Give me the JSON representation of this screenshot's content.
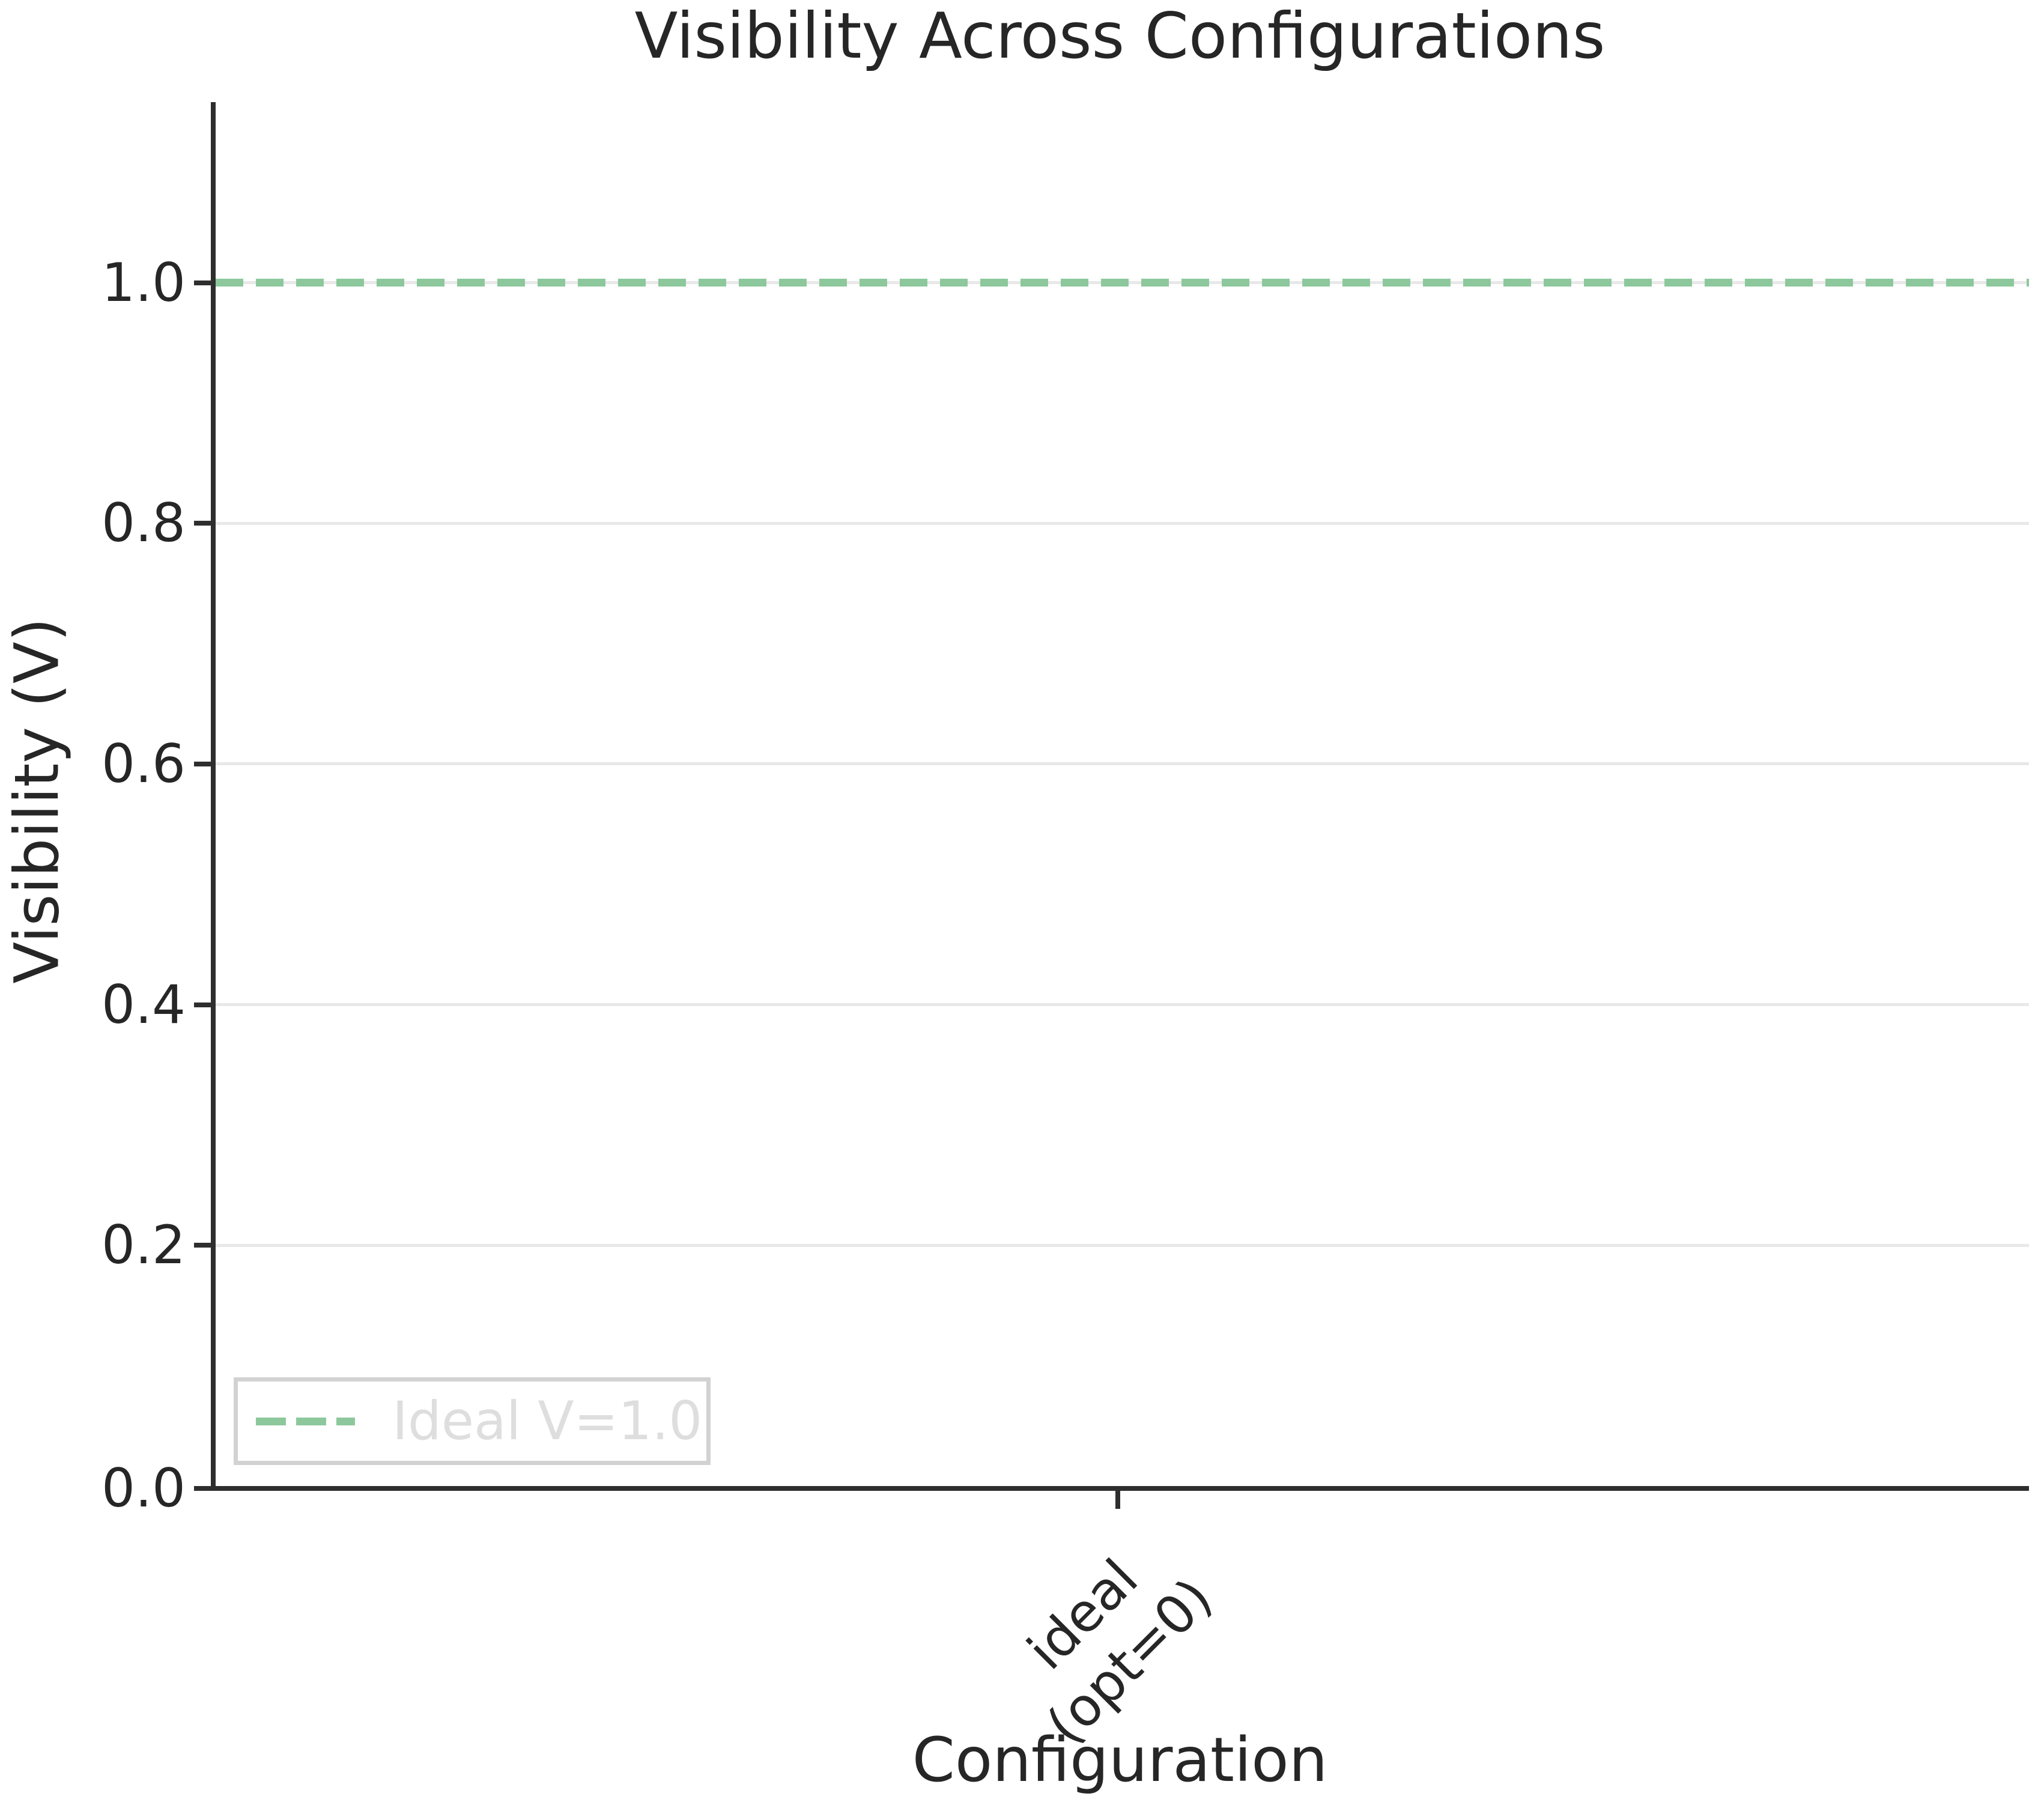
{
  "title": "Visibility Across Configurations",
  "axes": {
    "xlabel": "Configuration",
    "ylabel": "Visibility (V)"
  },
  "legend": {
    "entries": [
      {
        "label": "Ideal V=1.0",
        "color": "#8cc89c",
        "linestyle": "dashed"
      }
    ],
    "position": "lower left"
  },
  "colors": {
    "ideal_line": "#8cc89c",
    "grid": "#e8e8e8",
    "axis": "#2e2e2e",
    "text": "#262626",
    "legend_text": "#dedede",
    "legend_border": "#d2d2d2",
    "background": "#ffffff"
  },
  "chart_data": {
    "type": "bar",
    "title": "Visibility Across Configurations",
    "xlabel": "Configuration",
    "ylabel": "Visibility (V)",
    "categories": [
      "ideal\n(opt=0)"
    ],
    "series": [],
    "reference_line": {
      "y": 1.0,
      "label": "Ideal V=1.0",
      "color": "#8cc89c",
      "linestyle": "dashed"
    },
    "ylim": [
      0,
      1.15
    ],
    "yticks": [
      0.0,
      0.2,
      0.4,
      0.6,
      0.8,
      1.0
    ],
    "grid": "horizontal-only",
    "legend_position": "lower left",
    "xtick_rotation_deg": 45
  }
}
